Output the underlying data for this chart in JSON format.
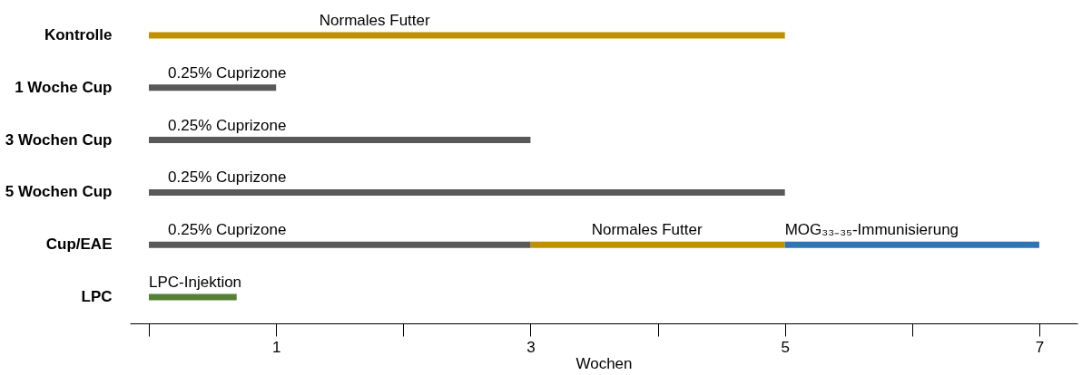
{
  "chart_data": {
    "type": "bar",
    "orientation": "horizontal",
    "xlabel": "Wochen",
    "categories": [
      "Kontrolle",
      "1 Woche Cup",
      "3 Wochen Cup",
      "5 Wochen Cup",
      "Cup/EAE",
      "LPC"
    ],
    "series": [
      {
        "color": "#bf9000",
        "values": [
          5,
          null,
          null,
          null,
          2,
          null
        ],
        "base": [
          0,
          null,
          null,
          null,
          3,
          null
        ]
      },
      {
        "color": "#595959",
        "values": [
          null,
          1,
          3,
          5,
          3,
          null
        ],
        "base": [
          null,
          0,
          0,
          0,
          0,
          null
        ]
      },
      {
        "color": "#2e75b6",
        "values": [
          null,
          null,
          null,
          null,
          2,
          null
        ],
        "base": [
          null,
          null,
          null,
          null,
          5,
          null
        ]
      },
      {
        "color": "#548235",
        "values": [
          null,
          null,
          null,
          null,
          null,
          0.69
        ],
        "base": [
          null,
          null,
          null,
          null,
          null,
          0
        ]
      }
    ],
    "annotations": [
      {
        "text": "Normales Futter",
        "x": 1.34,
        "y": "Kontrolle"
      },
      {
        "text": "0.25% Cuprizone",
        "x": 0.15,
        "y": "1 Woche Cup"
      },
      {
        "text": "0.25% Cuprizone",
        "x": 0.15,
        "y": "3 Wochen Cup"
      },
      {
        "text": "0.25% Cuprizone",
        "x": 0.15,
        "y": "5 Wochen Cup"
      },
      {
        "text": "0.25% Cuprizone",
        "x": 0.15,
        "y": "Cup/EAE"
      },
      {
        "text": "Normales Futter",
        "x": 3.48,
        "y": "Cup/EAE"
      },
      {
        "text": "MOG₃₃₋₃₅-Immunisierung",
        "x": 5,
        "y": "Cup/EAE"
      },
      {
        "text": "LPC-Injektion",
        "x": 0,
        "y": "LPC"
      }
    ],
    "xlim": [
      -0.15,
      7.3
    ],
    "xticks": [
      {
        "value": 0,
        "label": null
      },
      1,
      {
        "value": 2,
        "label": null
      },
      3,
      {
        "value": 4,
        "label": null
      },
      5,
      {
        "value": 6,
        "label": null
      },
      7
    ],
    "grid": false,
    "legend": false
  }
}
